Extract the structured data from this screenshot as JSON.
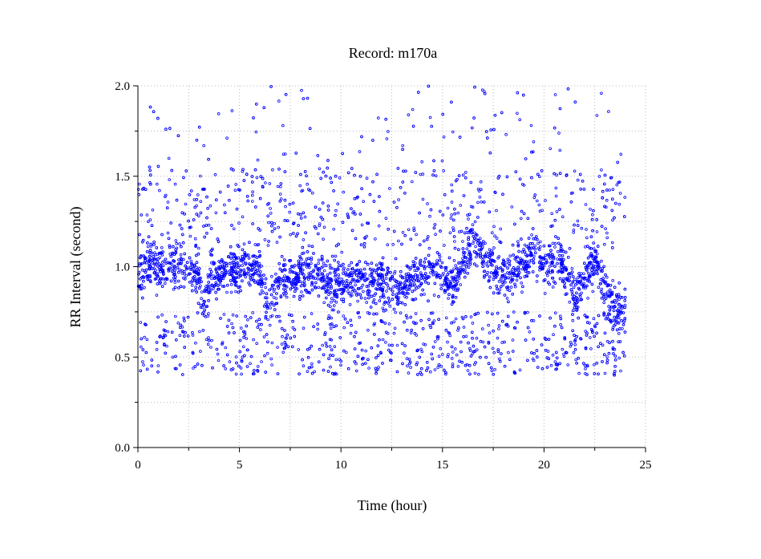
{
  "chart_data": {
    "type": "scatter",
    "title": "Record:  m170a",
    "xlabel": "Time (hour)",
    "ylabel": "RR Interval (second)",
    "xlim": [
      0,
      25
    ],
    "ylim": [
      0,
      2.0
    ],
    "x_tick_labels": [
      "0",
      "5",
      "10",
      "15",
      "20",
      "25"
    ],
    "y_tick_labels": [
      "0.0",
      "0.5",
      "1.0",
      "1.5",
      "2.0"
    ],
    "grid": true,
    "marker": "open-circle",
    "series": [
      {
        "color": "#0000ff",
        "x_range_hours": [
          0,
          24
        ],
        "baseline_trend": [
          {
            "x": 0.0,
            "y": 0.97
          },
          {
            "x": 0.5,
            "y": 1.02
          },
          {
            "x": 1.0,
            "y": 1.0
          },
          {
            "x": 2.0,
            "y": 1.0
          },
          {
            "x": 3.0,
            "y": 0.95
          },
          {
            "x": 3.2,
            "y": 0.75
          },
          {
            "x": 3.6,
            "y": 0.95
          },
          {
            "x": 4.5,
            "y": 0.98
          },
          {
            "x": 5.5,
            "y": 0.99
          },
          {
            "x": 6.0,
            "y": 0.98
          },
          {
            "x": 6.4,
            "y": 0.78
          },
          {
            "x": 7.0,
            "y": 0.93
          },
          {
            "x": 8.0,
            "y": 0.96
          },
          {
            "x": 9.0,
            "y": 0.95
          },
          {
            "x": 9.6,
            "y": 0.9
          },
          {
            "x": 10.0,
            "y": 0.92
          },
          {
            "x": 11.0,
            "y": 0.93
          },
          {
            "x": 12.0,
            "y": 0.9
          },
          {
            "x": 13.0,
            "y": 0.9
          },
          {
            "x": 13.8,
            "y": 0.93
          },
          {
            "x": 14.5,
            "y": 1.0
          },
          {
            "x": 15.0,
            "y": 0.98
          },
          {
            "x": 15.5,
            "y": 0.88
          },
          {
            "x": 16.0,
            "y": 1.05
          },
          {
            "x": 16.5,
            "y": 1.12
          },
          {
            "x": 17.0,
            "y": 1.05
          },
          {
            "x": 18.0,
            "y": 0.95
          },
          {
            "x": 19.0,
            "y": 1.02
          },
          {
            "x": 19.5,
            "y": 1.08
          },
          {
            "x": 20.0,
            "y": 1.0
          },
          {
            "x": 20.5,
            "y": 1.02
          },
          {
            "x": 21.0,
            "y": 1.0
          },
          {
            "x": 21.5,
            "y": 0.85
          },
          {
            "x": 22.0,
            "y": 0.92
          },
          {
            "x": 22.5,
            "y": 1.05
          },
          {
            "x": 23.0,
            "y": 0.88
          },
          {
            "x": 23.5,
            "y": 0.75
          },
          {
            "x": 24.0,
            "y": 0.78
          }
        ],
        "scatter_bands": [
          {
            "y_range": [
              0.4,
              0.75
            ],
            "share": 0.2
          },
          {
            "y_range": [
              1.1,
              1.55
            ],
            "share": 0.15
          },
          {
            "y_range": [
              1.55,
              2.0
            ],
            "share": 0.03
          }
        ]
      }
    ]
  }
}
